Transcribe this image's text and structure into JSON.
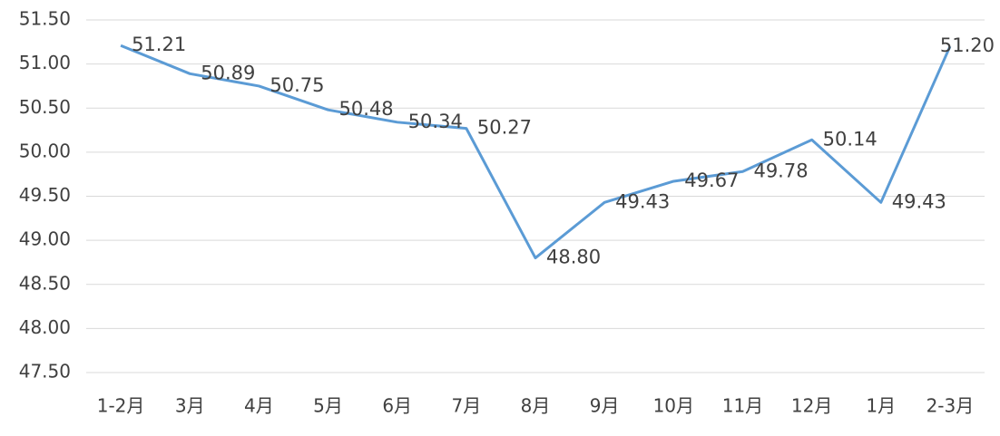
{
  "chart_data": {
    "type": "line",
    "categories": [
      "1-2月",
      "3月",
      "4月",
      "5月",
      "6月",
      "7月",
      "8月",
      "9月",
      "10月",
      "11月",
      "12月",
      "1月",
      "2-3月"
    ],
    "series": [
      {
        "color": "#5b9bd5",
        "values": [
          51.21,
          50.89,
          50.75,
          50.48,
          50.34,
          50.27,
          48.8,
          49.43,
          49.67,
          49.78,
          50.14,
          49.43,
          51.2
        ],
        "value_labels": [
          "51.21",
          "50.89",
          "50.75",
          "50.48",
          "50.34",
          "50.27",
          "48.80",
          "49.43",
          "49.67",
          "49.78",
          "50.14",
          "49.43",
          "51.20"
        ]
      }
    ],
    "ylim": [
      47.5,
      51.5
    ],
    "yticks": [
      {
        "value": 47.5,
        "label": "47.50"
      },
      {
        "value": 48,
        "label": "48.00"
      },
      {
        "value": 48.5,
        "label": "48.50"
      },
      {
        "value": 49,
        "label": "49.00"
      },
      {
        "value": 49.5,
        "label": "49.50"
      },
      {
        "value": 50,
        "label": "50.00"
      },
      {
        "value": 50.5,
        "label": "50.50"
      },
      {
        "value": 51,
        "label": "51.00"
      },
      {
        "value": 51.5,
        "label": "51.50"
      }
    ],
    "grid": true
  }
}
